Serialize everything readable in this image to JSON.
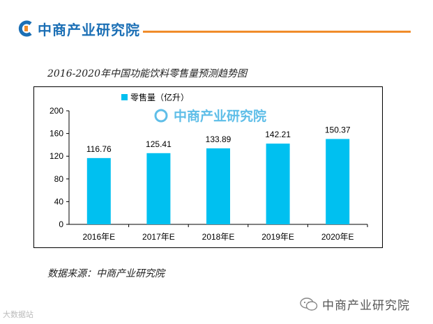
{
  "header": {
    "brand_name": "中商产业研究院",
    "brand_color": "#1b6fb5",
    "rule_color": "#f08c2a",
    "logo_icon": "brand-c-icon"
  },
  "chart_data": {
    "type": "bar",
    "title": "2016-2020年中国功能饮料零售量预测趋势图",
    "categories": [
      "2016年E",
      "2017年E",
      "2018年E",
      "2019年E",
      "2020年E"
    ],
    "series": [
      {
        "name": "零售量（亿升）",
        "values": [
          116.76,
          125.41,
          133.89,
          142.21,
          150.37
        ],
        "color": "#00c0f0"
      }
    ],
    "data_labels": [
      "116.76",
      "125.41",
      "133.89",
      "142.21",
      "150.37"
    ],
    "yticks": [
      0,
      40,
      80,
      120,
      160,
      200
    ],
    "ylim": [
      0,
      200
    ],
    "xlabel": "",
    "ylabel": "",
    "legend_position": "top-left",
    "grid": false,
    "watermark": "中商产业研究院"
  },
  "footer": {
    "source": "数据来源：中商产业研究院",
    "wechat_icon": "wechat-icon",
    "brand": "中商产业研究院",
    "corner_watermark": "大数据站"
  }
}
